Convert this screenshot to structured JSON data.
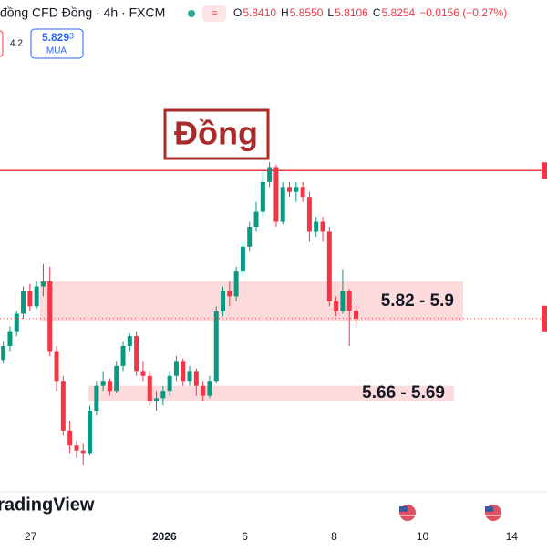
{
  "header": {
    "symbol": "đồng CFD Đồng · 4h · FXCM",
    "quote": [
      {
        "key": "O",
        "value": "5.8410"
      },
      {
        "key": "H",
        "value": "5.8550"
      },
      {
        "key": "L",
        "value": "5.8106"
      },
      {
        "key": "C",
        "value": "5.8254"
      }
    ],
    "change": "−0.0156 (−0.27%)",
    "spread": "4.2",
    "buy_price": "5.829",
    "buy_price_small": "3",
    "buy_label": "MUA"
  },
  "chart_data": {
    "type": "candlestick",
    "title": "Đồng",
    "logo": "TradingView",
    "open": [
      5.742,
      5.77,
      5.8,
      5.835,
      5.88,
      5.85,
      5.89,
      5.9,
      5.76,
      5.7,
      5.6,
      5.57,
      5.56,
      5.555,
      5.64,
      5.69,
      5.7,
      5.68,
      5.73,
      5.77,
      5.79,
      5.72,
      5.71,
      5.66,
      5.665,
      5.68,
      5.71,
      5.74,
      5.7,
      5.72,
      5.69,
      5.67,
      5.7,
      5.84,
      5.88,
      5.87,
      5.92,
      5.97,
      6.01,
      6.04,
      6.1,
      6.13,
      6.02,
      6.09,
      6.08,
      6.09,
      6.07,
      6.0,
      6.02,
      6.0,
      5.86,
      5.84,
      5.88,
      5.841
    ],
    "high": [
      5.78,
      5.81,
      5.84,
      5.89,
      5.895,
      5.9,
      5.935,
      5.93,
      5.77,
      5.71,
      5.62,
      5.58,
      5.575,
      5.65,
      5.7,
      5.72,
      5.705,
      5.74,
      5.78,
      5.795,
      5.8,
      5.74,
      5.72,
      5.68,
      5.69,
      5.72,
      5.75,
      5.745,
      5.73,
      5.725,
      5.7,
      5.71,
      5.85,
      5.89,
      5.9,
      5.93,
      5.98,
      6.02,
      6.06,
      6.12,
      6.14,
      6.135,
      6.1,
      6.1,
      6.1,
      6.1,
      6.08,
      6.03,
      6.03,
      6.01,
      5.87,
      5.925,
      5.885,
      5.855
    ],
    "low": [
      5.735,
      5.76,
      5.79,
      5.825,
      5.84,
      5.845,
      5.87,
      5.75,
      5.68,
      5.59,
      5.555,
      5.545,
      5.53,
      5.55,
      5.63,
      5.68,
      5.67,
      5.675,
      5.72,
      5.76,
      5.71,
      5.7,
      5.65,
      5.64,
      5.65,
      5.67,
      5.7,
      5.69,
      5.69,
      5.67,
      5.66,
      5.665,
      5.695,
      5.83,
      5.85,
      5.86,
      5.91,
      5.96,
      6.0,
      6.03,
      6.09,
      6.01,
      6.015,
      6.07,
      6.06,
      6.06,
      5.98,
      5.99,
      5.98,
      5.85,
      5.83,
      5.835,
      5.77,
      5.8106
    ],
    "close": [
      5.77,
      5.8,
      5.835,
      5.88,
      5.85,
      5.89,
      5.9,
      5.76,
      5.7,
      5.6,
      5.57,
      5.56,
      5.555,
      5.64,
      5.69,
      5.7,
      5.68,
      5.73,
      5.77,
      5.79,
      5.72,
      5.71,
      5.66,
      5.665,
      5.68,
      5.71,
      5.74,
      5.7,
      5.72,
      5.69,
      5.67,
      5.7,
      5.84,
      5.88,
      5.87,
      5.92,
      5.97,
      6.01,
      6.04,
      6.1,
      6.13,
      6.02,
      6.09,
      6.08,
      6.09,
      6.07,
      6.0,
      6.02,
      6.0,
      5.86,
      5.84,
      5.88,
      5.841,
      5.8254
    ],
    "up_color": "#089981",
    "down_color": "#f23645",
    "resistance": 6.123,
    "zones": [
      {
        "low": 5.82,
        "high": 5.9,
        "label": "5.82 - 5.9"
      },
      {
        "low": 5.66,
        "high": 5.69,
        "label": "5.66 - 5.69"
      }
    ],
    "ylim": [
      5.477,
      6.466
    ],
    "xlim": [
      -0.5,
      81.7
    ],
    "xticks": [
      {
        "value": 4.1,
        "label": "27"
      },
      {
        "value": 24.2,
        "label": "2026"
      },
      {
        "value": 36.3,
        "label": "6"
      },
      {
        "value": 49.7,
        "label": "8"
      },
      {
        "value": 63,
        "label": "10"
      },
      {
        "value": 76.4,
        "label": "14"
      }
    ]
  }
}
